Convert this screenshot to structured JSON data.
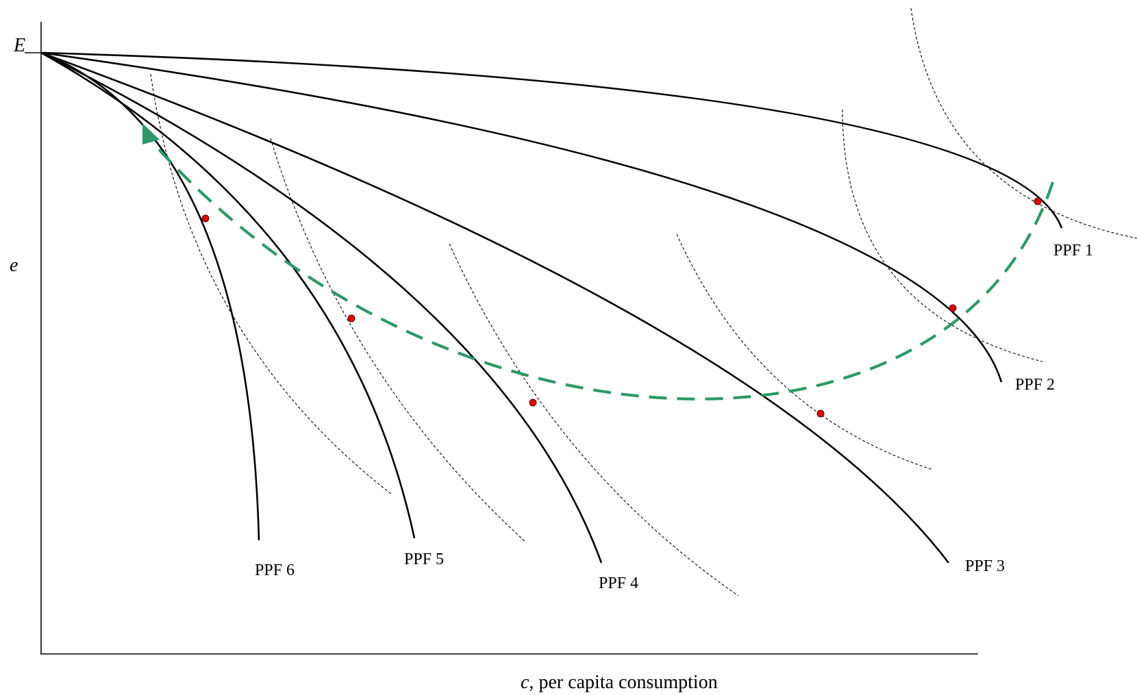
{
  "axes": {
    "y_top_label": "E",
    "y_label": "e",
    "x_var": "c,",
    "x_desc": " per capita consumption"
  },
  "ppf_labels": [
    "PPF 1",
    "PPF 2",
    "PPF 3",
    "PPF 4",
    "PPF 5",
    "PPF 6"
  ],
  "colors": {
    "curve": "#000000",
    "path": "#2e9966",
    "point": "#e00000",
    "indifference": "#000000"
  },
  "icons": {
    "path_arrow": "arrowhead-icon",
    "optimum_point": "dot-icon"
  }
}
